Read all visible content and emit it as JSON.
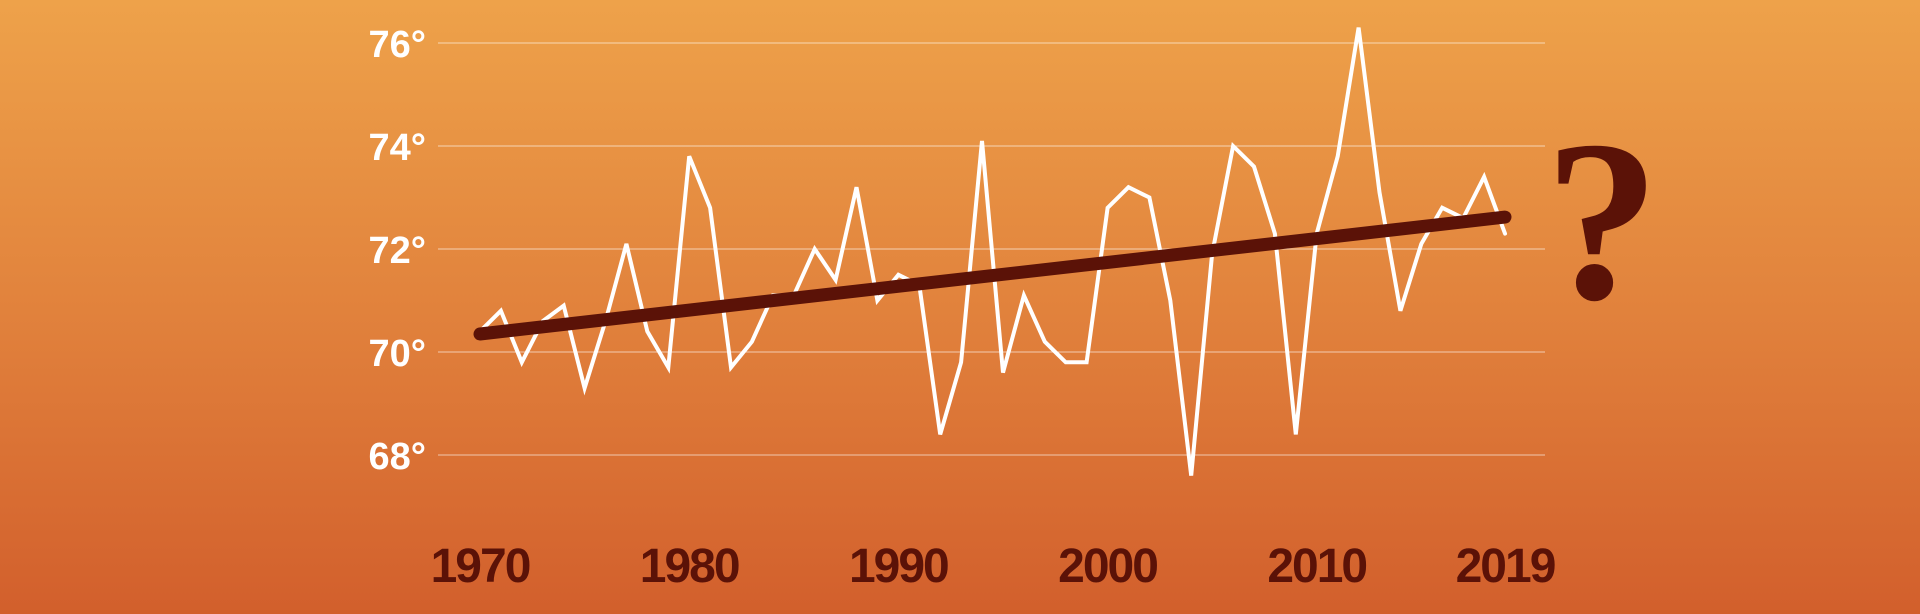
{
  "chart_data": {
    "type": "line",
    "title": "",
    "xlabel": "",
    "ylabel": "",
    "x_tick_labels": [
      "1970",
      "1980",
      "1990",
      "2000",
      "2010",
      "2019"
    ],
    "y_tick_labels": [
      "68°",
      "70°",
      "72°",
      "74°",
      "76°"
    ],
    "xlim": [
      1970,
      2019
    ],
    "ylim": [
      68,
      76
    ],
    "grid": true,
    "annotation": "?",
    "series": [
      {
        "kind": "annual",
        "color": "#ffffff",
        "x": [
          1970,
          1971,
          1972,
          1973,
          1974,
          1975,
          1976,
          1977,
          1978,
          1979,
          1980,
          1981,
          1982,
          1983,
          1984,
          1985,
          1986,
          1987,
          1988,
          1989,
          1990,
          1991,
          1992,
          1993,
          1994,
          1995,
          1996,
          1997,
          1998,
          1999,
          2000,
          2001,
          2002,
          2003,
          2004,
          2005,
          2006,
          2007,
          2008,
          2009,
          2010,
          2011,
          2012,
          2013,
          2014,
          2015,
          2016,
          2017,
          2018,
          2019
        ],
        "y": [
          70.4,
          70.8,
          69.8,
          70.6,
          70.9,
          69.3,
          70.6,
          72.1,
          70.4,
          69.7,
          73.8,
          72.8,
          69.7,
          70.2,
          71.1,
          71.1,
          72.0,
          71.4,
          73.2,
          71.0,
          71.5,
          71.3,
          68.4,
          69.8,
          74.1,
          69.6,
          71.1,
          70.2,
          69.8,
          69.8,
          72.8,
          73.2,
          73.0,
          71.0,
          67.6,
          71.9,
          74.0,
          73.6,
          72.3,
          68.4,
          72.3,
          73.8,
          76.3,
          73.1,
          70.8,
          72.1,
          72.8,
          72.6,
          73.4,
          72.3
        ]
      },
      {
        "kind": "trend",
        "color": "#5b1207",
        "x": [
          1970,
          2019
        ],
        "y": [
          70.35,
          72.62
        ]
      }
    ]
  }
}
